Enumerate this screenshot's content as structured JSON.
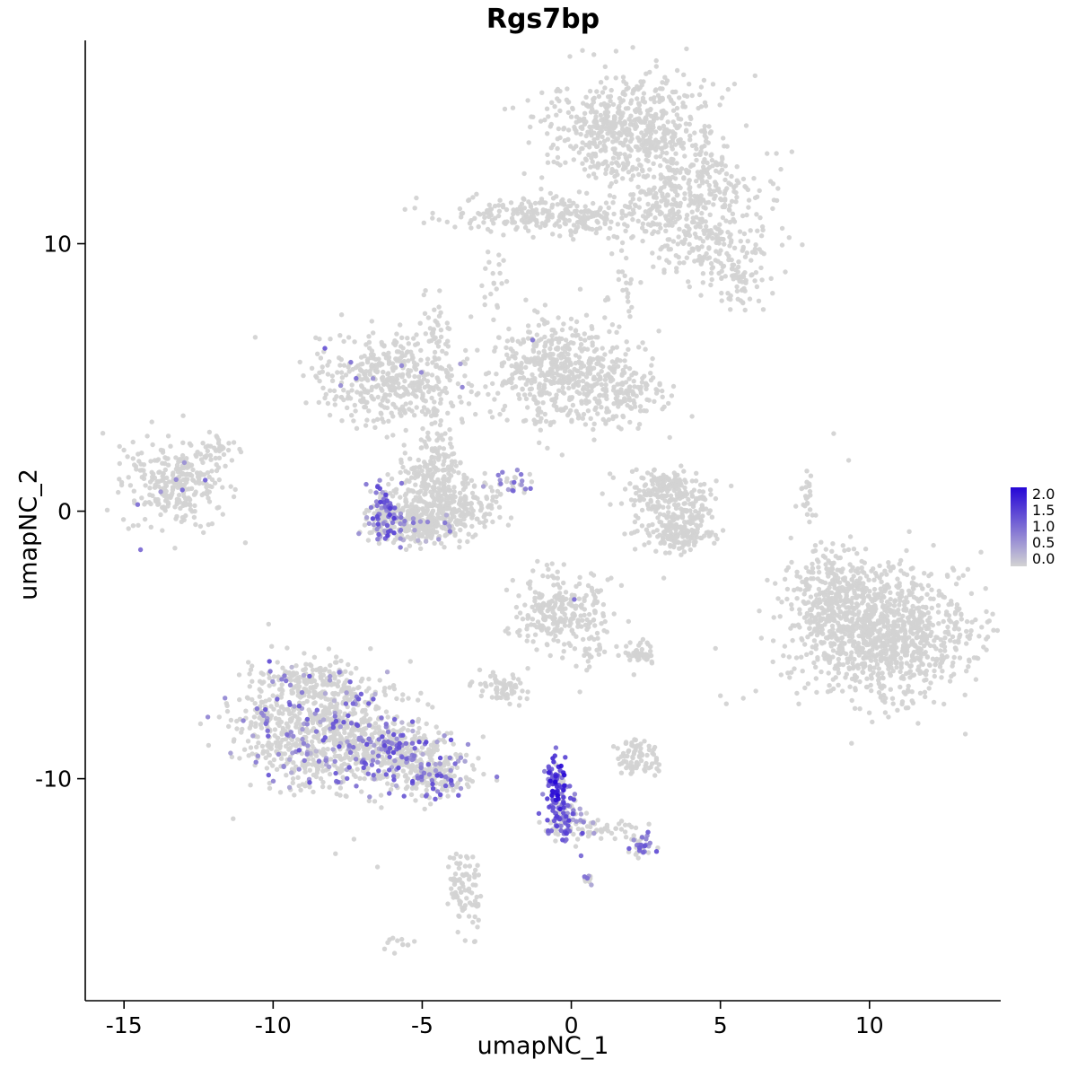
{
  "chart_data": {
    "type": "scatter",
    "title": "Rgs7bp",
    "xlabel": "umapNC_1",
    "ylabel": "umapNC_2",
    "xlim": [
      -16.3,
      14.4
    ],
    "ylim": [
      -18.3,
      17.6
    ],
    "x_ticks": [
      -15,
      -10,
      -5,
      0,
      5,
      10
    ],
    "y_ticks": [
      -10,
      0,
      10
    ],
    "grid": false,
    "legend": {
      "ticks": [
        "2.0",
        "1.5",
        "1.0",
        "0.5",
        "0.0"
      ],
      "min": 0.0,
      "max": 2.0,
      "low_color": "#d3d3d3",
      "high_color": "#2506d6",
      "position": "right"
    },
    "point": {
      "radius": 2.7,
      "base_color": "#d3d3d3"
    },
    "seed": 42,
    "clusters": [
      {
        "name": "top-main",
        "x": 1.9,
        "y": 14.2,
        "sx": 1.4,
        "sy": 1.1,
        "n": 620,
        "f": 0,
        "lo": 0,
        "hi": 0
      },
      {
        "name": "top-right-ext",
        "x": 4.3,
        "y": 12.1,
        "sx": 1.1,
        "sy": 0.8,
        "n": 230,
        "f": 0,
        "lo": 0,
        "hi": 0
      },
      {
        "name": "top-bridge",
        "x": 2.7,
        "y": 11.3,
        "sx": 0.6,
        "sy": 0.5,
        "n": 70,
        "f": 0,
        "lo": 0,
        "hi": 0
      },
      {
        "name": "band-left",
        "x": -1.6,
        "y": 11.1,
        "sx": 1.6,
        "sy": 0.33,
        "n": 170,
        "f": 0,
        "lo": 0,
        "hi": 0
      },
      {
        "name": "band-mid",
        "x": 0.4,
        "y": 10.9,
        "sx": 0.8,
        "sy": 0.4,
        "n": 80,
        "f": 0,
        "lo": 0,
        "hi": 0
      },
      {
        "name": "band-right",
        "x": 4.4,
        "y": 10.0,
        "sx": 1.0,
        "sy": 0.65,
        "n": 170,
        "f": 0,
        "lo": 0,
        "hi": 0
      },
      {
        "name": "band-right2",
        "x": 5.6,
        "y": 8.7,
        "sx": 0.55,
        "sy": 0.55,
        "n": 70,
        "f": 0,
        "lo": 0,
        "hi": 0
      },
      {
        "name": "midleft-main",
        "x": -5.9,
        "y": 4.9,
        "sx": 1.25,
        "sy": 0.85,
        "n": 430,
        "f": 0.012,
        "lo": 0.5,
        "hi": 1.2
      },
      {
        "name": "midleft-streak-up",
        "x": -4.6,
        "y": 6.6,
        "sx": 0.25,
        "sy": 0.7,
        "n": 35,
        "f": 0.08,
        "lo": 0.7,
        "hi": 1.2
      },
      {
        "name": "central-main",
        "x": -0.4,
        "y": 5.1,
        "sx": 1.15,
        "sy": 1.0,
        "n": 480,
        "f": 0,
        "lo": 0,
        "hi": 0
      },
      {
        "name": "central-right",
        "x": 1.7,
        "y": 4.4,
        "sx": 0.8,
        "sy": 0.65,
        "n": 140,
        "f": 0,
        "lo": 0,
        "hi": 0
      },
      {
        "name": "central-top-streak",
        "x": 1.7,
        "y": 8.2,
        "sx": 0.25,
        "sy": 0.8,
        "n": 22,
        "f": 0,
        "lo": 0,
        "hi": 0
      },
      {
        "name": "band-bridge",
        "x": -2.6,
        "y": 8.6,
        "sx": 0.2,
        "sy": 0.9,
        "n": 22,
        "f": 0,
        "lo": 0,
        "hi": 0
      },
      {
        "name": "hook-left-rim",
        "x": -6.3,
        "y": 0.0,
        "sx": 0.3,
        "sy": 0.65,
        "n": 110,
        "f": 0.55,
        "lo": 0.5,
        "hi": 1.5
      },
      {
        "name": "hook-bottom",
        "x": -5.3,
        "y": -0.6,
        "sx": 0.8,
        "sy": 0.33,
        "n": 190,
        "f": 0.12,
        "lo": 0.3,
        "hi": 1.0
      },
      {
        "name": "hook-body",
        "x": -4.3,
        "y": 0.2,
        "sx": 0.9,
        "sy": 0.6,
        "n": 330,
        "f": 0,
        "lo": 0,
        "hi": 0
      },
      {
        "name": "hook-top",
        "x": -4.8,
        "y": 1.4,
        "sx": 0.5,
        "sy": 0.4,
        "n": 90,
        "f": 0,
        "lo": 0,
        "hi": 0
      },
      {
        "name": "hook-column",
        "x": -4.4,
        "y": 2.4,
        "sx": 0.3,
        "sy": 0.5,
        "n": 40,
        "f": 0,
        "lo": 0,
        "hi": 0
      },
      {
        "name": "farleft-main",
        "x": -13.3,
        "y": 1.1,
        "sx": 0.85,
        "sy": 0.75,
        "n": 300,
        "f": 0.02,
        "lo": 0.6,
        "hi": 1.2
      },
      {
        "name": "farleft-sat",
        "x": -11.8,
        "y": 2.4,
        "sx": 0.3,
        "sy": 0.3,
        "n": 25,
        "f": 0,
        "lo": 0,
        "hi": 0
      },
      {
        "name": "crescent-a",
        "x": 2.6,
        "y": 0.6,
        "sx": 0.5,
        "sy": 0.5,
        "n": 95,
        "f": 0,
        "lo": 0,
        "hi": 0
      },
      {
        "name": "crescent-b",
        "x": 3.5,
        "y": 0.9,
        "sx": 0.6,
        "sy": 0.33,
        "n": 85,
        "f": 0,
        "lo": 0,
        "hi": 0
      },
      {
        "name": "crescent-c",
        "x": 3.9,
        "y": -0.1,
        "sx": 0.4,
        "sy": 0.5,
        "n": 100,
        "f": 0,
        "lo": 0,
        "hi": 0
      },
      {
        "name": "crescent-d",
        "x": 3.3,
        "y": -0.9,
        "sx": 0.7,
        "sy": 0.3,
        "n": 120,
        "f": 0,
        "lo": 0,
        "hi": 0
      },
      {
        "name": "right-streak",
        "x": 7.9,
        "y": 0.5,
        "sx": 0.12,
        "sy": 0.55,
        "n": 22,
        "f": 0,
        "lo": 0,
        "hi": 0
      },
      {
        "name": "right-big",
        "x": 10.5,
        "y": -4.5,
        "sx": 1.5,
        "sy": 1.25,
        "n": 1050,
        "f": 0,
        "lo": 0,
        "hi": 0
      },
      {
        "name": "right-big-lobe",
        "x": 8.6,
        "y": -3.3,
        "sx": 0.7,
        "sy": 0.85,
        "n": 230,
        "f": 0,
        "lo": 0,
        "hi": 0
      },
      {
        "name": "center-low",
        "x": -0.3,
        "y": -3.7,
        "sx": 0.8,
        "sy": 0.7,
        "n": 260,
        "f": 0,
        "lo": 0,
        "hi": 0
      },
      {
        "name": "center-low-tail",
        "x": 0.6,
        "y": -5.1,
        "sx": 0.2,
        "sy": 0.4,
        "n": 18,
        "f": 0,
        "lo": 0,
        "hi": 0
      },
      {
        "name": "botleft-main",
        "x": -8.3,
        "y": -8.2,
        "sx": 1.35,
        "sy": 1.15,
        "n": 850,
        "f": 0.15,
        "lo": 0.3,
        "hi": 1.3
      },
      {
        "name": "botleft-tail",
        "x": -5.7,
        "y": -9.2,
        "sx": 1.0,
        "sy": 0.6,
        "n": 330,
        "f": 0.3,
        "lo": 0.4,
        "hi": 1.4
      },
      {
        "name": "botleft-tip",
        "x": -4.4,
        "y": -10.0,
        "sx": 0.5,
        "sy": 0.35,
        "n": 110,
        "f": 0.28,
        "lo": 0.4,
        "hi": 1.4
      },
      {
        "name": "botleft-top",
        "x": -8.9,
        "y": -6.3,
        "sx": 0.8,
        "sy": 0.5,
        "n": 120,
        "f": 0.1,
        "lo": 0.3,
        "hi": 1.0
      },
      {
        "name": "small-left-low",
        "x": -2.4,
        "y": -6.6,
        "sx": 0.4,
        "sy": 0.28,
        "n": 65,
        "f": 0,
        "lo": 0,
        "hi": 0
      },
      {
        "name": "streak-top",
        "x": -0.5,
        "y": -10.2,
        "sx": 0.18,
        "sy": 0.55,
        "n": 85,
        "f": 0.85,
        "lo": 0.8,
        "hi": 2.0
      },
      {
        "name": "streak-bottom",
        "x": -0.25,
        "y": -11.5,
        "sx": 0.3,
        "sy": 0.5,
        "n": 110,
        "f": 0.6,
        "lo": 0.4,
        "hi": 1.5
      },
      {
        "name": "streak-right",
        "x": 0.6,
        "y": -11.9,
        "sx": 0.3,
        "sy": 0.2,
        "n": 20,
        "f": 0.1,
        "lo": 0.3,
        "hi": 0.8
      },
      {
        "name": "small-right-low",
        "x": 2.2,
        "y": -9.2,
        "sx": 0.35,
        "sy": 0.3,
        "n": 75,
        "f": 0,
        "lo": 0,
        "hi": 0
      },
      {
        "name": "purple-small",
        "x": 2.4,
        "y": -12.5,
        "sx": 0.2,
        "sy": 0.28,
        "n": 38,
        "f": 0.55,
        "lo": 0.4,
        "hi": 1.4
      },
      {
        "name": "purple-bridge",
        "x": 1.5,
        "y": -11.9,
        "sx": 0.45,
        "sy": 0.2,
        "n": 22,
        "f": 0.1,
        "lo": 0.3,
        "hi": 0.8
      },
      {
        "name": "tiny-dot",
        "x": 0.6,
        "y": -13.8,
        "sx": 0.15,
        "sy": 0.15,
        "n": 12,
        "f": 0.5,
        "lo": 0.4,
        "hi": 1.2
      },
      {
        "name": "bottom-small",
        "x": -3.6,
        "y": -14.2,
        "sx": 0.28,
        "sy": 0.75,
        "n": 85,
        "f": 0,
        "lo": 0,
        "hi": 0
      },
      {
        "name": "bottom-tiny",
        "x": -5.8,
        "y": -16.2,
        "sx": 0.25,
        "sy": 0.15,
        "n": 12,
        "f": 0,
        "lo": 0,
        "hi": 0
      },
      {
        "name": "small-mid-low",
        "x": 2.3,
        "y": -5.3,
        "sx": 0.3,
        "sy": 0.25,
        "n": 45,
        "f": 0,
        "lo": 0,
        "hi": 0
      },
      {
        "name": "center-purple-streak",
        "x": -1.9,
        "y": 1.0,
        "sx": 0.35,
        "sy": 0.3,
        "n": 28,
        "f": 0.5,
        "lo": 0.3,
        "hi": 1.1
      }
    ],
    "singles": [
      [
        -10.6,
        6.5
      ],
      [
        -2.9,
        8.0
      ],
      [
        6.7,
        8.7
      ],
      [
        8.8,
        2.9
      ],
      [
        9.3,
        1.9
      ],
      [
        5.0,
        -6.9
      ],
      [
        5.2,
        -7.2
      ],
      [
        -12.6,
        -0.5
      ],
      [
        0.3,
        8.3
      ],
      [
        -6.5,
        -13.3
      ],
      [
        3.1,
        -2.5
      ],
      [
        -0.9,
        7.0
      ]
    ],
    "singles_expr": [
      [
        -1.3,
        6.4,
        0.9
      ],
      [
        0.1,
        -3.3,
        1.0
      ]
    ]
  }
}
